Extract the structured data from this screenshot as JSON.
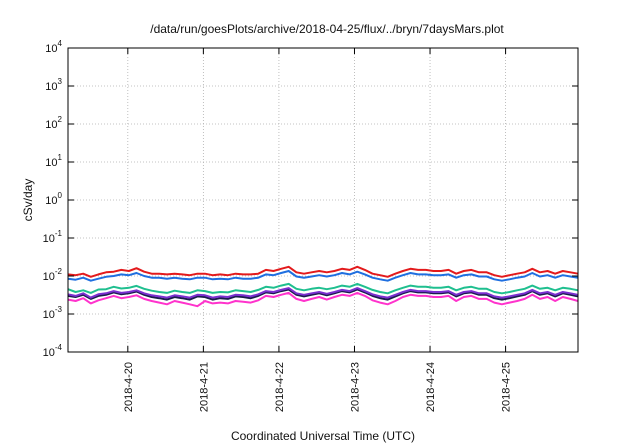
{
  "chart_data": {
    "type": "line",
    "title": "/data/run/goesPlots/archive/2018-04-25/flux/../bryn/7daysMars.plot",
    "xlabel": "Coordinated Universal Time (UTC)",
    "ylabel": "cSv/day",
    "yscale": "log",
    "ylim": [
      0.0001,
      10000
    ],
    "y_ticks": [
      {
        "base": "10",
        "exp": "-4",
        "value": 0.0001
      },
      {
        "base": "10",
        "exp": "-3",
        "value": 0.001
      },
      {
        "base": "10",
        "exp": "-2",
        "value": 0.01
      },
      {
        "base": "10",
        "exp": "-1",
        "value": 0.1
      },
      {
        "base": "10",
        "exp": "0",
        "value": 1
      },
      {
        "base": "10",
        "exp": "1",
        "value": 10
      },
      {
        "base": "10",
        "exp": "2",
        "value": 100
      },
      {
        "base": "10",
        "exp": "3",
        "value": 1000
      },
      {
        "base": "10",
        "exp": "4",
        "value": 10000
      }
    ],
    "xlim": [
      "2018-04-19T05:00",
      "2018-04-25T23:00"
    ],
    "x_ticks": [
      "2018-4-20",
      "2018-4-21",
      "2018-4-22",
      "2018-4-23",
      "2018-4-24",
      "2018-4-25"
    ],
    "grid": true,
    "legend": "none",
    "series": [
      {
        "color": "#e31a1c",
        "values": [
          0.011,
          0.0105,
          0.0115,
          0.0095,
          0.011,
          0.0125,
          0.013,
          0.0145,
          0.0135,
          0.016,
          0.013,
          0.0115,
          0.0115,
          0.011,
          0.0115,
          0.011,
          0.0105,
          0.0115,
          0.0115,
          0.0105,
          0.011,
          0.0105,
          0.0115,
          0.011,
          0.011,
          0.0115,
          0.0145,
          0.0135,
          0.0155,
          0.0175,
          0.0125,
          0.0115,
          0.0125,
          0.0135,
          0.0125,
          0.0135,
          0.0155,
          0.0145,
          0.0175,
          0.0145,
          0.0115,
          0.0105,
          0.0095,
          0.0115,
          0.0135,
          0.0155,
          0.0145,
          0.0145,
          0.0135,
          0.0135,
          0.0145,
          0.0115,
          0.0135,
          0.0145,
          0.0125,
          0.0125,
          0.0105,
          0.0095,
          0.0105,
          0.0115,
          0.0125,
          0.0155,
          0.0125,
          0.0135,
          0.0115,
          0.0135,
          0.0125,
          0.0115
        ]
      },
      {
        "color": "#1f6fe0",
        "values": [
          0.0085,
          0.008,
          0.009,
          0.0075,
          0.0085,
          0.0095,
          0.01,
          0.011,
          0.0105,
          0.012,
          0.01,
          0.009,
          0.009,
          0.0085,
          0.009,
          0.0085,
          0.0082,
          0.009,
          0.009,
          0.0082,
          0.0085,
          0.0082,
          0.009,
          0.0085,
          0.0085,
          0.009,
          0.011,
          0.0105,
          0.012,
          0.0135,
          0.0097,
          0.009,
          0.0097,
          0.0105,
          0.0097,
          0.0105,
          0.012,
          0.011,
          0.013,
          0.011,
          0.009,
          0.0082,
          0.0075,
          0.009,
          0.0105,
          0.012,
          0.011,
          0.011,
          0.0105,
          0.0105,
          0.011,
          0.009,
          0.0105,
          0.011,
          0.0097,
          0.0097,
          0.0082,
          0.0075,
          0.0082,
          0.009,
          0.0097,
          0.012,
          0.0097,
          0.0105,
          0.009,
          0.0105,
          0.0097,
          0.009
        ]
      },
      {
        "color": "#1fbf8f",
        "values": [
          0.0045,
          0.0038,
          0.0042,
          0.0036,
          0.0044,
          0.0045,
          0.0052,
          0.0047,
          0.0049,
          0.0055,
          0.0046,
          0.0041,
          0.0038,
          0.0036,
          0.0041,
          0.0038,
          0.0036,
          0.0042,
          0.004,
          0.0036,
          0.0038,
          0.0037,
          0.0042,
          0.004,
          0.0038,
          0.0043,
          0.0052,
          0.0049,
          0.0056,
          0.0062,
          0.0046,
          0.0042,
          0.0046,
          0.0049,
          0.0045,
          0.0049,
          0.0056,
          0.0052,
          0.0062,
          0.0052,
          0.0043,
          0.0038,
          0.0035,
          0.0042,
          0.0049,
          0.0056,
          0.0052,
          0.0052,
          0.0049,
          0.0049,
          0.0052,
          0.0042,
          0.0049,
          0.0052,
          0.0046,
          0.0046,
          0.0038,
          0.0035,
          0.0038,
          0.0042,
          0.0046,
          0.0056,
          0.0046,
          0.0049,
          0.0042,
          0.0049,
          0.0046,
          0.0042
        ]
      },
      {
        "color": "#1a1a4d",
        "values": [
          0.003,
          0.0028,
          0.0032,
          0.0025,
          0.003,
          0.0032,
          0.0037,
          0.0033,
          0.0035,
          0.0039,
          0.0032,
          0.0028,
          0.0026,
          0.0024,
          0.0028,
          0.0026,
          0.0024,
          0.0029,
          0.0028,
          0.0024,
          0.0026,
          0.0025,
          0.0029,
          0.0028,
          0.0026,
          0.003,
          0.0037,
          0.0035,
          0.004,
          0.0044,
          0.0032,
          0.0029,
          0.0032,
          0.0035,
          0.0031,
          0.0035,
          0.004,
          0.0037,
          0.0044,
          0.0037,
          0.003,
          0.0026,
          0.0024,
          0.0029,
          0.0035,
          0.004,
          0.0037,
          0.0037,
          0.0035,
          0.0035,
          0.0037,
          0.0029,
          0.0035,
          0.0037,
          0.0032,
          0.0032,
          0.0026,
          0.0024,
          0.0026,
          0.0029,
          0.0032,
          0.004,
          0.0032,
          0.0035,
          0.0029,
          0.0035,
          0.0032,
          0.0029
        ]
      },
      {
        "color": "#7b2fd0",
        "values": [
          0.0033,
          0.003,
          0.0035,
          0.0027,
          0.0033,
          0.0035,
          0.004,
          0.0036,
          0.0038,
          0.0042,
          0.0035,
          0.0031,
          0.0029,
          0.0027,
          0.0031,
          0.0029,
          0.0027,
          0.0032,
          0.0031,
          0.0027,
          0.0029,
          0.0028,
          0.0032,
          0.0031,
          0.0029,
          0.0033,
          0.004,
          0.0038,
          0.0043,
          0.0048,
          0.0035,
          0.0032,
          0.0035,
          0.0038,
          0.0034,
          0.0038,
          0.0043,
          0.004,
          0.0048,
          0.004,
          0.0033,
          0.0029,
          0.0027,
          0.0032,
          0.0038,
          0.0043,
          0.004,
          0.004,
          0.0038,
          0.0038,
          0.004,
          0.0032,
          0.0038,
          0.004,
          0.0035,
          0.0035,
          0.0029,
          0.0027,
          0.0029,
          0.0032,
          0.0035,
          0.0043,
          0.0035,
          0.0038,
          0.0032,
          0.0038,
          0.0035,
          0.0032
        ]
      },
      {
        "color": "#ff33cc",
        "values": [
          0.0024,
          0.0022,
          0.0026,
          0.0019,
          0.0023,
          0.0026,
          0.003,
          0.0026,
          0.0028,
          0.0031,
          0.0025,
          0.0022,
          0.002,
          0.0018,
          0.0022,
          0.002,
          0.0018,
          0.0016,
          0.0022,
          0.0019,
          0.002,
          0.0019,
          0.0022,
          0.0021,
          0.002,
          0.0023,
          0.003,
          0.0028,
          0.0032,
          0.0036,
          0.0025,
          0.0022,
          0.0025,
          0.0028,
          0.0024,
          0.0028,
          0.0032,
          0.003,
          0.0036,
          0.003,
          0.0023,
          0.002,
          0.0018,
          0.0022,
          0.0028,
          0.0032,
          0.003,
          0.003,
          0.0028,
          0.0028,
          0.003,
          0.0022,
          0.0028,
          0.003,
          0.0025,
          0.0025,
          0.002,
          0.0018,
          0.002,
          0.0022,
          0.0025,
          0.0032,
          0.0025,
          0.0028,
          0.0022,
          0.0028,
          0.0025,
          0.0022
        ]
      }
    ]
  }
}
